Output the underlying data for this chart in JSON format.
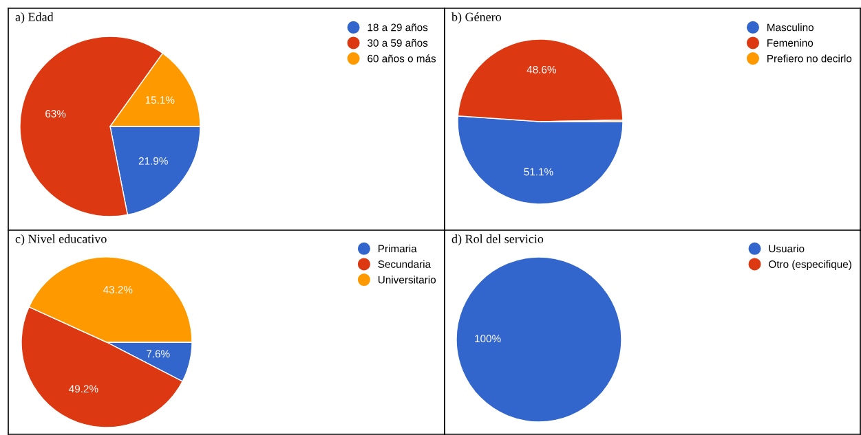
{
  "chart_data": [
    {
      "type": "pie",
      "title": "a) Edad",
      "categories": [
        "18 a 29 años",
        "30 a 59 años",
        "60 años o más"
      ],
      "values": [
        21.9,
        63,
        15.1
      ],
      "value_labels": [
        "21.9%",
        "63%",
        "15.1%"
      ],
      "colors": [
        "#3366cc",
        "#dc3912",
        "#ff9900"
      ],
      "legend": "top right"
    },
    {
      "type": "pie",
      "title": "b) Género",
      "categories": [
        "Masculino",
        "Femenino",
        "Prefiero no decirlo"
      ],
      "values": [
        51.1,
        48.6,
        0.3
      ],
      "value_labels": [
        "51.1%",
        "48.6%",
        null
      ],
      "colors": [
        "#3366cc",
        "#dc3912",
        "#ff9900"
      ],
      "legend": "top right"
    },
    {
      "type": "pie",
      "title": "c) Nivel educativo",
      "categories": [
        "Primaria",
        "Secundaria",
        "Universitario"
      ],
      "values": [
        7.6,
        49.2,
        43.2
      ],
      "value_labels": [
        "7.6%",
        "49.2%",
        "43.2%"
      ],
      "colors": [
        "#3366cc",
        "#dc3912",
        "#ff9900"
      ],
      "legend": "top right"
    },
    {
      "type": "pie",
      "title": "d) Rol del servicio",
      "categories": [
        "Usuario",
        "Otro (especifique)"
      ],
      "values": [
        100,
        0
      ],
      "value_labels": [
        "100%",
        null
      ],
      "colors": [
        "#3366cc",
        "#dc3912"
      ],
      "legend": "top right"
    }
  ]
}
